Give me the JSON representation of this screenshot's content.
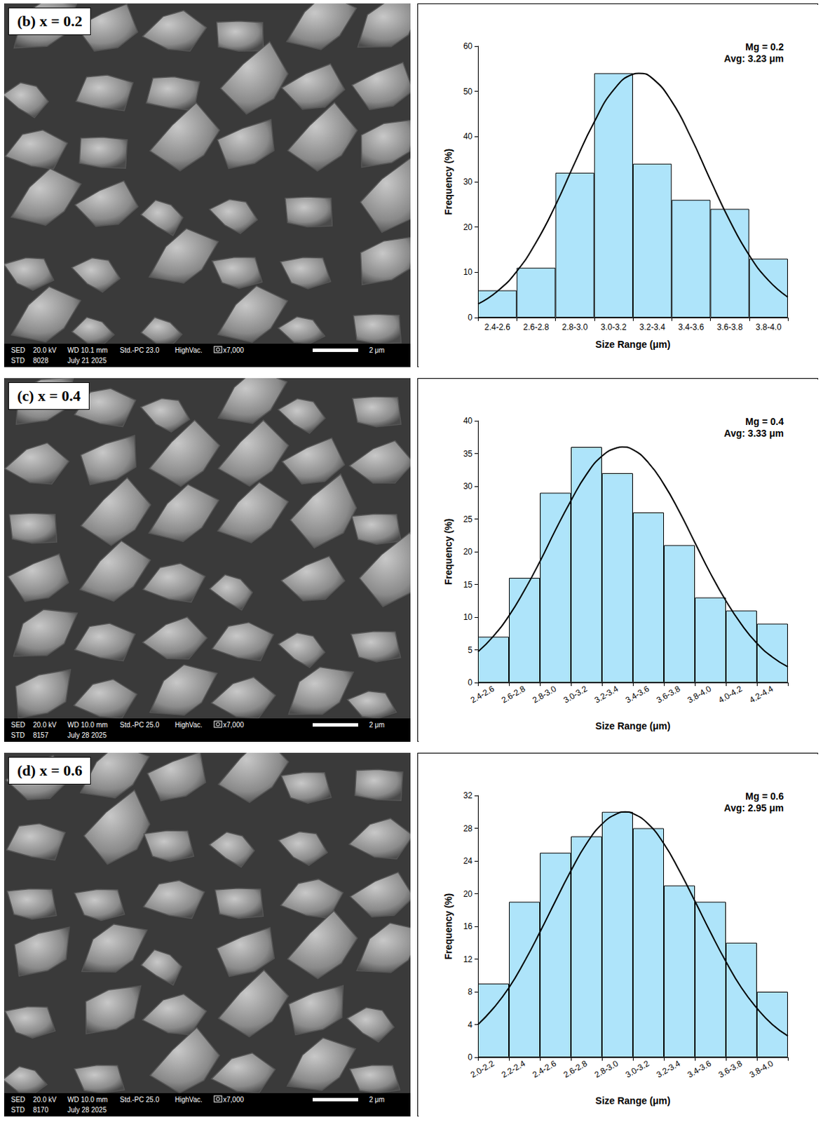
{
  "sem_images": [
    {
      "label": "(b) x = 0.2",
      "bar_line1": [
        "SED",
        "20.0 kV",
        "WD 10.1 mm",
        "Std.-PC 23.0",
        "HighVac.",
        "x7,000"
      ],
      "bar_line2": [
        "STD",
        "8028",
        "July 21 2025"
      ],
      "scale_bar": "2 μm"
    },
    {
      "label": "(c) x = 0.4",
      "bar_line1": [
        "SED",
        "20.0 kV",
        "WD 10.0 mm",
        "Std.-PC 25.0",
        "HighVac.",
        "x7,000"
      ],
      "bar_line2": [
        "STD",
        "8157",
        "July 28 2025"
      ],
      "scale_bar": "2 μm"
    },
    {
      "label": "(d) x = 0.6",
      "bar_line1": [
        "SED",
        "20.0 kV",
        "WD 10.0 mm",
        "Std.-PC 25.0",
        "HighVac.",
        "x7,000"
      ],
      "bar_line2": [
        "STD",
        "8170",
        "July 28 2025"
      ],
      "scale_bar": "2 μm"
    }
  ],
  "chart_data": [
    {
      "type": "bar",
      "xlabel": "Size Range (μm)",
      "ylabel": "Frequency (%)",
      "annotations": [
        "Mg = 0.2",
        "Avg: 3.23 μm"
      ],
      "categories": [
        "2.4-2.6",
        "2.6-2.8",
        "2.8-3.0",
        "3.0-3.2",
        "3.2-3.4",
        "3.4-3.6",
        "3.6-3.8",
        "3.8-4.0"
      ],
      "values": [
        6,
        11,
        32,
        54,
        34,
        26,
        24,
        13
      ],
      "color": "#aee4fa",
      "ylim": [
        0,
        60
      ],
      "yticks": [
        0,
        10,
        20,
        30,
        40,
        50,
        60
      ],
      "xlim": [
        2.4,
        4.0
      ],
      "curve": {
        "color": "#000000",
        "x": [
          2.4,
          2.5,
          2.6,
          2.7,
          2.8,
          2.9,
          3.0,
          3.1,
          3.2,
          3.23,
          3.3,
          3.4,
          3.5,
          3.6,
          3.7,
          3.8,
          3.9,
          4.0
        ],
        "y": [
          3.0,
          5.8,
          10.2,
          16.6,
          24.8,
          34.2,
          43.2,
          50.3,
          53.8,
          54.0,
          52.9,
          47.8,
          39.8,
          30.4,
          21.4,
          13.8,
          8.2,
          4.5
        ]
      }
    },
    {
      "type": "bar",
      "xlabel": "Size Range (μm)",
      "ylabel": "Frequency (%)",
      "annotations": [
        "Mg = 0.4",
        "Avg: 3.33 μm"
      ],
      "categories": [
        "2.4-2.6",
        "2.6-2.8",
        "2.8-3.0",
        "3.0-3.2",
        "3.2-3.4",
        "3.4-3.6",
        "3.6-3.8",
        "3.8-4.0",
        "4.0-4.2",
        "4.2-4.4"
      ],
      "values": [
        7,
        16,
        29,
        36,
        32,
        26,
        21,
        13,
        11,
        9
      ],
      "color": "#aee4fa",
      "ylim": [
        0,
        40
      ],
      "yticks": [
        0,
        5,
        10,
        15,
        20,
        25,
        30,
        35,
        40
      ],
      "xlim": [
        2.4,
        4.4
      ],
      "curve": {
        "color": "#000000",
        "x": [
          2.4,
          2.5,
          2.6,
          2.7,
          2.8,
          2.9,
          3.0,
          3.1,
          3.2,
          3.3,
          3.33,
          3.4,
          3.5,
          3.6,
          3.7,
          3.8,
          3.9,
          4.0,
          4.1,
          4.2,
          4.3,
          4.4
        ],
        "y": [
          4.7,
          7.1,
          10.2,
          14.1,
          18.5,
          23.3,
          27.8,
          31.8,
          34.6,
          35.9,
          36.0,
          35.6,
          33.6,
          30.3,
          26.1,
          21.4,
          16.7,
          12.5,
          8.9,
          6.0,
          3.9,
          2.4
        ]
      }
    },
    {
      "type": "bar",
      "xlabel": "Size Range (μm)",
      "ylabel": "Frequency (%)",
      "annotations": [
        "Mg = 0.6",
        "Avg: 2.95 μm"
      ],
      "categories": [
        "2.0-2.2",
        "2.2-2.4",
        "2.4-2.6",
        "2.6-2.8",
        "2.8-3.0",
        "3.0-3.2",
        "3.2-3.4",
        "3.4-3.6",
        "3.6-3.8",
        "3.8-4.0"
      ],
      "values": [
        9,
        19,
        25,
        27,
        30,
        28,
        21,
        19,
        14,
        8
      ],
      "color": "#aee4fa",
      "ylim": [
        0,
        32
      ],
      "yticks": [
        0,
        4,
        8,
        12,
        16,
        20,
        24,
        28,
        32
      ],
      "xlim": [
        2.0,
        4.0
      ],
      "curve": {
        "color": "#000000",
        "x": [
          2.0,
          2.1,
          2.2,
          2.3,
          2.4,
          2.5,
          2.6,
          2.7,
          2.8,
          2.9,
          2.95,
          3.0,
          3.1,
          3.2,
          3.3,
          3.4,
          3.5,
          3.6,
          3.7,
          3.8,
          3.9,
          4.0
        ],
        "y": [
          4.0,
          6.0,
          8.5,
          11.7,
          15.3,
          19.1,
          22.8,
          26.1,
          28.5,
          29.8,
          30.0,
          29.8,
          28.5,
          26.1,
          22.8,
          19.1,
          15.3,
          11.7,
          8.5,
          6.0,
          4.0,
          2.6
        ]
      }
    }
  ]
}
